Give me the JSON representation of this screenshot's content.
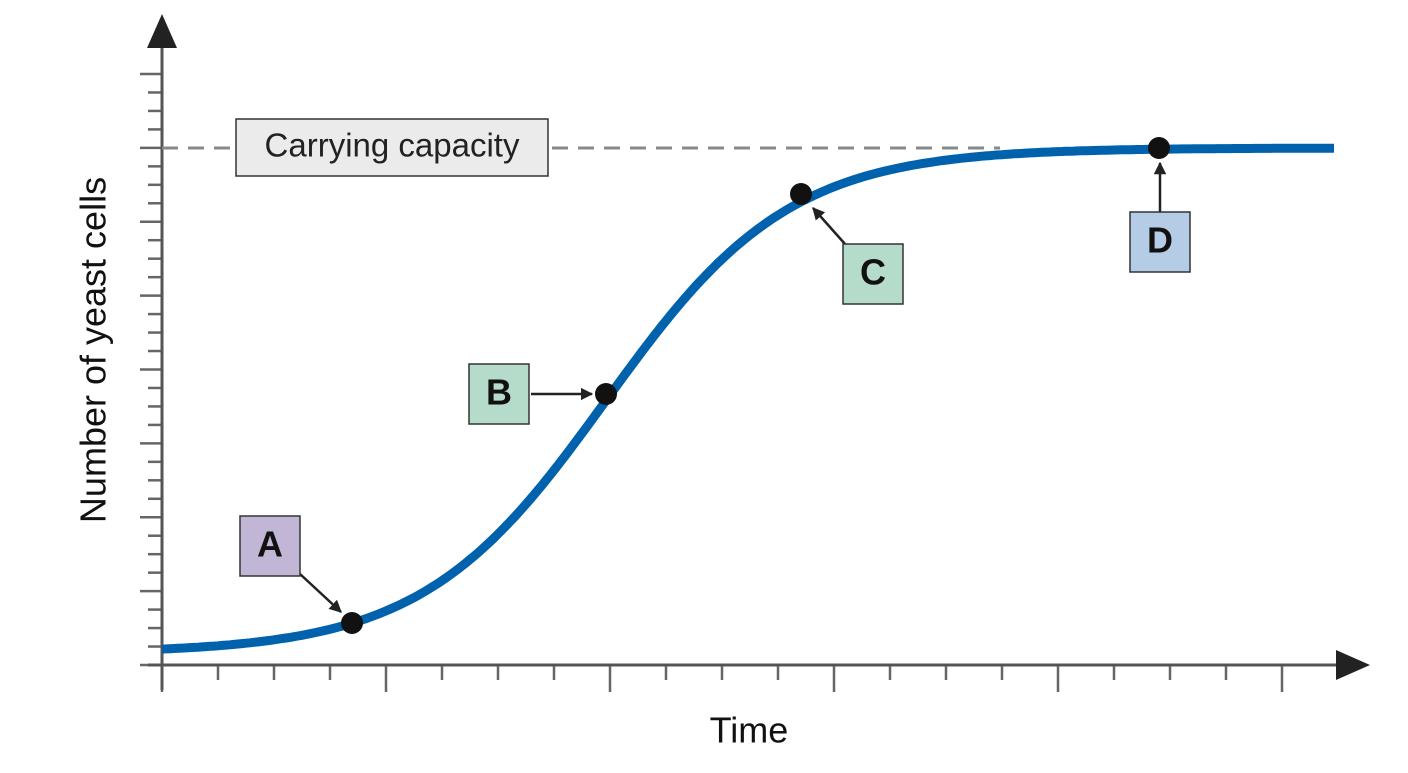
{
  "axes": {
    "x_label": "Time",
    "y_label": "Number of yeast cells"
  },
  "carrying_capacity": {
    "label": "Carrying capacity"
  },
  "points": [
    {
      "label": "A"
    },
    {
      "label": "B"
    },
    {
      "label": "C"
    },
    {
      "label": "D"
    }
  ]
}
